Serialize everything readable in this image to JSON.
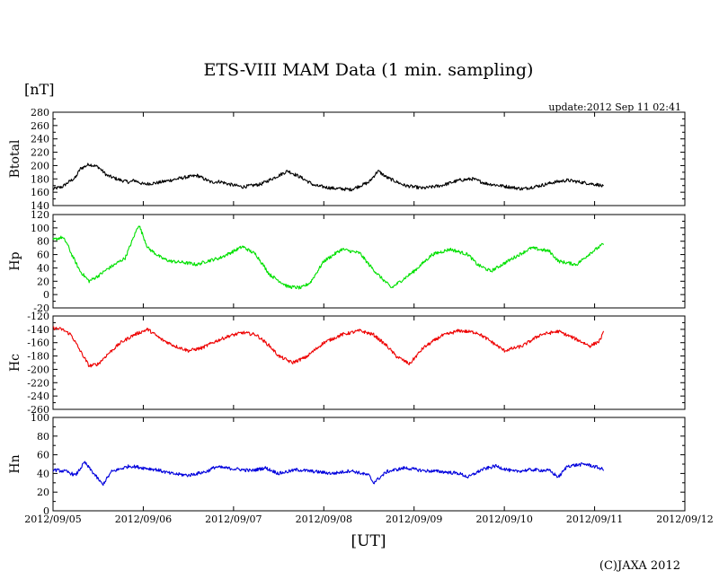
{
  "chart_data": {
    "type": "line",
    "title": "ETS-VIII MAM Data (1 min. sampling)",
    "unit_label": "[nT]",
    "update_text": "update:2012 Sep 11 02:41",
    "xlabel": "[UT]",
    "copyright": "(C)JAXA 2012",
    "x_ticks": [
      "2012/09/05",
      "2012/09/06",
      "2012/09/07",
      "2012/09/08",
      "2012/09/09",
      "2012/09/10",
      "2012/09/11",
      "2012/09/12"
    ],
    "xlim": [
      "2012/09/05",
      "2012/09/12"
    ],
    "grid": false,
    "panels": [
      {
        "ylabel": "Btotal",
        "ylim": [
          140,
          280
        ],
        "yticks": [
          140,
          160,
          180,
          200,
          220,
          240,
          260,
          280
        ],
        "color": "#000000",
        "x": [
          0,
          0.1,
          0.17,
          0.25,
          0.3,
          0.4,
          0.5,
          0.6,
          0.75,
          0.85,
          0.9,
          1.0,
          1.15,
          1.3,
          1.45,
          1.6,
          1.75,
          1.85,
          1.95,
          2.1,
          2.3,
          2.5,
          2.6,
          2.75,
          2.9,
          3.1,
          3.3,
          3.5,
          3.6,
          3.7,
          3.9,
          4.1,
          4.3,
          4.5,
          4.65,
          4.8,
          5.0,
          5.2,
          5.4,
          5.55,
          5.7,
          5.9,
          6.05,
          6.1
        ],
        "y": [
          165,
          168,
          175,
          182,
          195,
          202,
          198,
          185,
          178,
          175,
          178,
          172,
          174,
          178,
          182,
          185,
          175,
          176,
          172,
          168,
          172,
          185,
          192,
          182,
          170,
          166,
          164,
          175,
          192,
          182,
          170,
          166,
          170,
          178,
          180,
          173,
          169,
          165,
          170,
          175,
          178,
          174,
          171,
          168
        ]
      },
      {
        "ylabel": "Hp",
        "ylim": [
          -20,
          120
        ],
        "yticks": [
          -20,
          0,
          20,
          40,
          60,
          80,
          100,
          120
        ],
        "color": "#00e000",
        "x": [
          0,
          0.1,
          0.15,
          0.2,
          0.3,
          0.4,
          0.5,
          0.6,
          0.8,
          0.95,
          1.05,
          1.2,
          1.3,
          1.45,
          1.6,
          1.7,
          1.85,
          2.0,
          2.1,
          2.25,
          2.4,
          2.6,
          2.75,
          2.85,
          3.0,
          3.2,
          3.4,
          3.5,
          3.6,
          3.75,
          4.0,
          4.2,
          4.4,
          4.6,
          4.7,
          4.85,
          5.1,
          5.3,
          5.5,
          5.6,
          5.8,
          5.95,
          6.1
        ],
        "y": [
          82,
          86,
          78,
          62,
          35,
          20,
          28,
          38,
          55,
          105,
          70,
          55,
          50,
          48,
          45,
          50,
          55,
          65,
          72,
          60,
          30,
          12,
          10,
          18,
          50,
          68,
          62,
          45,
          30,
          10,
          35,
          60,
          68,
          60,
          45,
          35,
          55,
          70,
          65,
          50,
          45,
          62,
          76
        ]
      },
      {
        "ylabel": "Hc",
        "ylim": [
          -260,
          -120
        ],
        "yticks": [
          -260,
          -240,
          -220,
          -200,
          -180,
          -160,
          -140,
          -120
        ],
        "color": "#ee0000",
        "x": [
          0,
          0.1,
          0.2,
          0.3,
          0.4,
          0.5,
          0.6,
          0.75,
          0.9,
          1.05,
          1.2,
          1.35,
          1.5,
          1.65,
          1.8,
          1.95,
          2.1,
          2.25,
          2.4,
          2.5,
          2.65,
          2.8,
          3.0,
          3.2,
          3.4,
          3.55,
          3.7,
          3.8,
          3.95,
          4.1,
          4.3,
          4.5,
          4.7,
          4.85,
          5.0,
          5.2,
          5.4,
          5.6,
          5.8,
          5.95,
          6.05,
          6.1
        ],
        "y": [
          -138,
          -140,
          -148,
          -172,
          -195,
          -192,
          -178,
          -160,
          -148,
          -140,
          -155,
          -165,
          -172,
          -168,
          -158,
          -150,
          -145,
          -148,
          -165,
          -180,
          -190,
          -182,
          -160,
          -148,
          -142,
          -148,
          -165,
          -180,
          -192,
          -168,
          -150,
          -142,
          -145,
          -158,
          -172,
          -165,
          -148,
          -143,
          -155,
          -165,
          -158,
          -145
        ]
      },
      {
        "ylabel": "Hn",
        "ylim": [
          0,
          100
        ],
        "yticks": [
          0,
          20,
          40,
          60,
          80,
          100
        ],
        "color": "#0000dd",
        "x": [
          0,
          0.15,
          0.25,
          0.35,
          0.45,
          0.55,
          0.65,
          0.85,
          1.0,
          1.15,
          1.3,
          1.5,
          1.7,
          1.8,
          2.0,
          2.2,
          2.35,
          2.5,
          2.7,
          2.9,
          3.1,
          3.3,
          3.5,
          3.55,
          3.7,
          3.9,
          4.1,
          4.3,
          4.5,
          4.6,
          4.75,
          4.9,
          5.1,
          5.3,
          5.5,
          5.6,
          5.7,
          5.9,
          6.05,
          6.1
        ],
        "y": [
          44,
          42,
          38,
          52,
          40,
          28,
          42,
          48,
          46,
          44,
          40,
          38,
          42,
          47,
          45,
          43,
          46,
          40,
          44,
          42,
          40,
          43,
          38,
          30,
          42,
          46,
          43,
          42,
          40,
          36,
          44,
          48,
          42,
          44,
          43,
          36,
          48,
          50,
          46,
          44
        ]
      }
    ]
  }
}
